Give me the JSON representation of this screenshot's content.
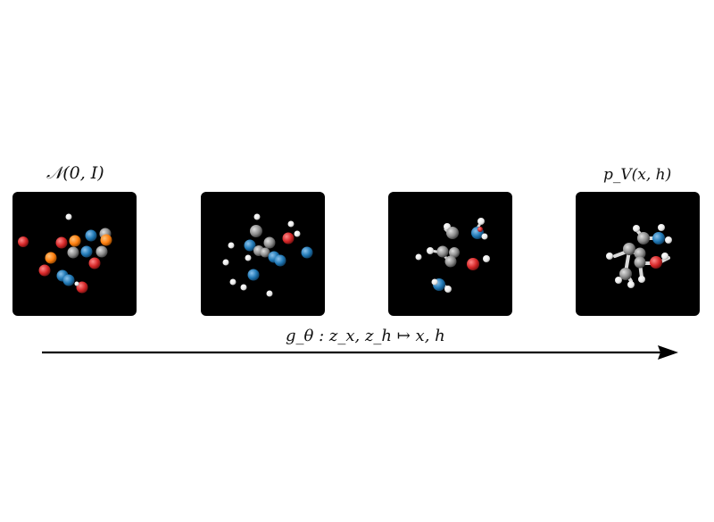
{
  "labels": {
    "start": "𝒩(0, I)",
    "end": "p_V(x, h)",
    "map": "g_θ : z_x, z_h ↦ x, h"
  },
  "colors": {
    "panel_bg": "#000000",
    "atom_red": "#d62728",
    "atom_blue": "#1f77b4",
    "atom_orange": "#ff7f0e",
    "atom_gray": "#9a9a9a",
    "atom_white": "#f2f2f2",
    "arrow": "#000000"
  },
  "panels": [
    {
      "name": "noise"
    },
    {
      "name": "step-2"
    },
    {
      "name": "step-3"
    },
    {
      "name": "molecule"
    }
  ]
}
